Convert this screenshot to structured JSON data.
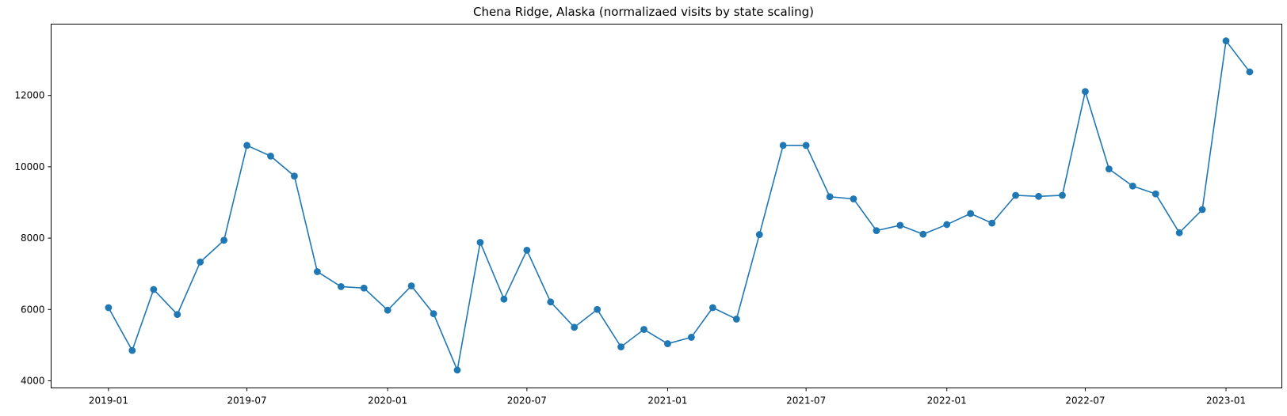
{
  "chart_data": {
    "type": "line",
    "title": "Chena Ridge, Alaska (normalizaed visits by state scaling)",
    "xlabel": "",
    "ylabel": "",
    "grid": false,
    "ylim": [
      3800,
      14000
    ],
    "xlim": [
      "2018-10-18",
      "2023-03-15"
    ],
    "x_ticks": [
      "2019-01",
      "2019-07",
      "2020-01",
      "2020-07",
      "2021-01",
      "2021-07",
      "2022-01",
      "2022-07",
      "2023-01"
    ],
    "y_ticks": [
      4000,
      6000,
      8000,
      10000,
      12000
    ],
    "series": [
      {
        "color": "#1f77b4",
        "marker": "circle",
        "x": [
          "2019-01",
          "2019-02",
          "2019-03",
          "2019-04",
          "2019-05",
          "2019-06",
          "2019-07",
          "2019-08",
          "2019-09",
          "2019-10",
          "2019-11",
          "2019-12",
          "2020-01",
          "2020-02",
          "2020-03",
          "2020-04",
          "2020-05",
          "2020-06",
          "2020-07",
          "2020-08",
          "2020-09",
          "2020-10",
          "2020-11",
          "2020-12",
          "2021-01",
          "2021-02",
          "2021-03",
          "2021-04",
          "2021-05",
          "2021-06",
          "2021-07",
          "2021-08",
          "2021-09",
          "2021-10",
          "2021-11",
          "2021-12",
          "2022-01",
          "2022-02",
          "2022-03",
          "2022-04",
          "2022-05",
          "2022-06",
          "2022-07",
          "2022-08",
          "2022-09",
          "2022-10",
          "2022-11",
          "2022-12",
          "2023-01",
          "2023-02"
        ],
        "values": [
          6050,
          4850,
          6560,
          5860,
          7330,
          7940,
          10600,
          10300,
          9740,
          7060,
          6640,
          6600,
          5980,
          6660,
          5880,
          4300,
          7880,
          6290,
          7660,
          6210,
          5500,
          6000,
          4950,
          5440,
          5040,
          5220,
          6050,
          5730,
          8100,
          10600,
          10600,
          9160,
          9100,
          8210,
          8360,
          8110,
          8380,
          8690,
          8420,
          9200,
          9170,
          9200,
          12110,
          9940,
          9460,
          9240,
          8150,
          8800,
          13530,
          12660
        ]
      }
    ]
  }
}
